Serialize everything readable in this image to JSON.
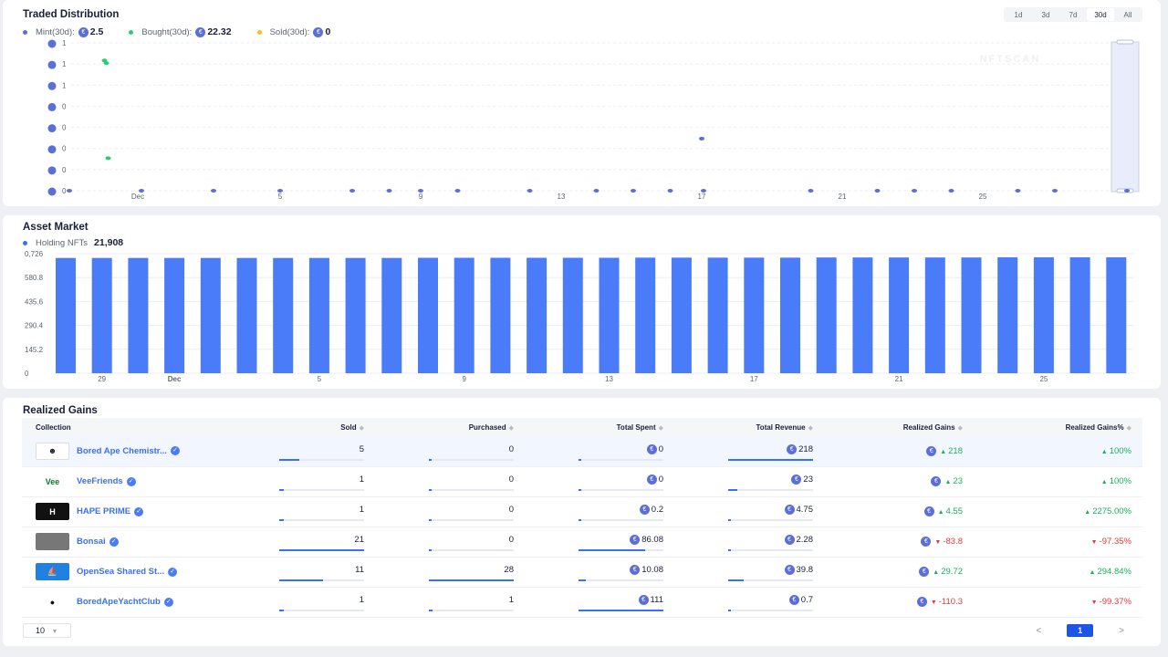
{
  "traded": {
    "title": "Traded Distribution",
    "ranges": [
      "1d",
      "3d",
      "7d",
      "30d",
      "All"
    ],
    "active_range": "30d",
    "legend": [
      {
        "label": "Mint(30d):",
        "value": "2.5",
        "color": "#5b6fd8"
      },
      {
        "label": "Bought(30d):",
        "value": "22.32",
        "color": "#2ecc71"
      },
      {
        "label": "Sold(30d):",
        "value": "0",
        "color": "#f1c40f"
      }
    ],
    "watermark": "NFTSCAN",
    "y_ticks": [
      "1",
      "1",
      "1",
      "0",
      "0",
      "0",
      "0",
      "0"
    ],
    "x_ticks": [
      "Dec",
      "5",
      "9",
      "13",
      "17",
      "21",
      "25"
    ]
  },
  "market": {
    "title": "Asset Market",
    "legend_label": "Holding NFTs",
    "legend_value": "21,908",
    "legend_color": "#3a6ff7",
    "y_ticks": [
      "0",
      "145.2",
      "290.4",
      "435.6",
      "580.8",
      "0,726"
    ],
    "x_ticks": [
      "29",
      "Dec",
      "5",
      "9",
      "13",
      "17",
      "21",
      "25"
    ]
  },
  "chart_data": [
    {
      "type": "scatter",
      "title": "Traded Distribution",
      "series": [
        {
          "name": "Mint(30d)",
          "points": [
            [
              "Nov 29",
              0
            ],
            [
              "Dec 1",
              0
            ],
            [
              "Dec 3",
              0
            ],
            [
              "Dec 5",
              0
            ],
            [
              "Dec 7",
              0
            ],
            [
              "Dec 8",
              0
            ],
            [
              "Dec 9",
              0
            ],
            [
              "Dec 10",
              0
            ],
            [
              "Dec 12",
              0
            ],
            [
              "Dec 14",
              0
            ],
            [
              "Dec 15",
              0
            ],
            [
              "Dec 16",
              0
            ],
            [
              "Dec 17",
              0.4
            ],
            [
              "Dec 17",
              0
            ],
            [
              "Dec 20",
              0
            ],
            [
              "Dec 22",
              0
            ],
            [
              "Dec 23",
              0
            ],
            [
              "Dec 24",
              0
            ],
            [
              "Dec 26",
              0
            ],
            [
              "Dec 27",
              0
            ],
            [
              "Dec 29",
              0
            ]
          ]
        },
        {
          "name": "Bought(30d)",
          "points": [
            [
              "Nov 30",
              1.0
            ],
            [
              "Nov 30",
              0.98
            ],
            [
              "Nov 30",
              0.25
            ]
          ]
        },
        {
          "name": "Sold(30d)",
          "points": []
        }
      ]
    },
    {
      "type": "bar",
      "title": "Asset Market",
      "series": [
        {
          "name": "Holding NFTs",
          "values": [
            700,
            700,
            700,
            700,
            700,
            700,
            700,
            700,
            700,
            700,
            701,
            701,
            701,
            701,
            701,
            701,
            702,
            702,
            702,
            702,
            702,
            703,
            703,
            703,
            703,
            703,
            704,
            704,
            704,
            704
          ]
        }
      ],
      "ylim": [
        0,
        726
      ]
    }
  ],
  "gains": {
    "title": "Realized Gains",
    "columns": [
      "Collection",
      "Sold",
      "Purchased",
      "Total Spent",
      "Total Revenue",
      "Realized Gains",
      "Realized Gains%"
    ],
    "rows": [
      {
        "name": "Bored Ape Chemistr...",
        "sold": "5",
        "purchased": "0",
        "spent": "0",
        "revenue": "218",
        "gain": "218",
        "gain_pct": "100%",
        "dir": "up",
        "sold_f": 0.24,
        "pur_f": 0,
        "spent_f": 0,
        "rev_f": 1.0
      },
      {
        "name": "VeeFriends",
        "sold": "1",
        "purchased": "0",
        "spent": "0",
        "revenue": "23",
        "gain": "23",
        "gain_pct": "100%",
        "dir": "up",
        "sold_f": 0.05,
        "pur_f": 0,
        "spent_f": 0,
        "rev_f": 0.11
      },
      {
        "name": "HAPE PRIME",
        "sold": "1",
        "purchased": "0",
        "spent": "0.2",
        "revenue": "4.75",
        "gain": "4.55",
        "gain_pct": "2275.00%",
        "dir": "up",
        "sold_f": 0.05,
        "pur_f": 0,
        "spent_f": 0.01,
        "rev_f": 0.02
      },
      {
        "name": "Bonsai",
        "sold": "21",
        "purchased": "0",
        "spent": "86.08",
        "revenue": "2.28",
        "gain": "-83.8",
        "gain_pct": "-97.35%",
        "dir": "down",
        "sold_f": 1.0,
        "pur_f": 0,
        "spent_f": 0.78,
        "rev_f": 0.01
      },
      {
        "name": "OpenSea Shared St...",
        "sold": "11",
        "purchased": "28",
        "spent": "10.08",
        "revenue": "39.8",
        "gain": "29.72",
        "gain_pct": "294.84%",
        "dir": "up",
        "sold_f": 0.52,
        "pur_f": 1.0,
        "spent_f": 0.09,
        "rev_f": 0.18
      },
      {
        "name": "BoredApeYachtClub",
        "sold": "1",
        "purchased": "1",
        "spent": "111",
        "revenue": "0.7",
        "gain": "-110.3",
        "gain_pct": "-99.37%",
        "dir": "down",
        "sold_f": 0.05,
        "pur_f": 0.04,
        "spent_f": 1.0,
        "rev_f": 0.005
      }
    ],
    "page_size": "10",
    "current_page": "1"
  }
}
